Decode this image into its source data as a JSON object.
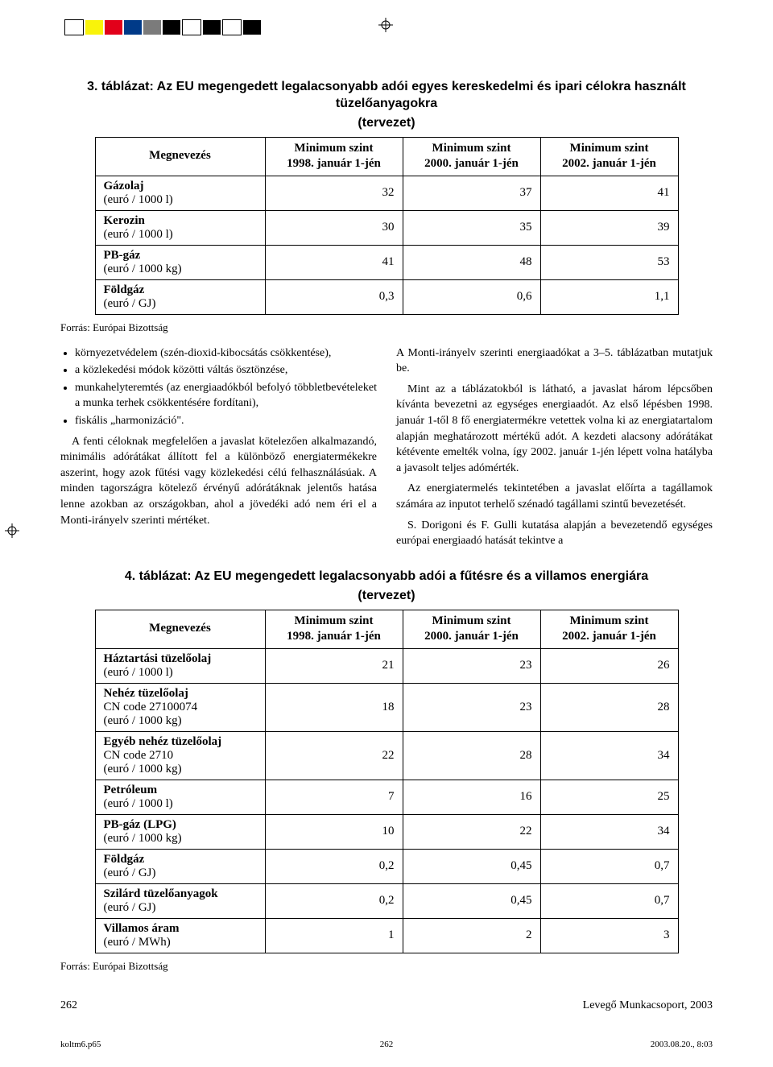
{
  "palette_swatches": [
    "#ffffff",
    "#f9f30a",
    "#e2001a",
    "#003a88",
    "#7b7b7b",
    "#000000",
    "#ffffff",
    "#000000",
    "#ffffff",
    "#000000"
  ],
  "table3": {
    "title": "3. táblázat: Az EU megengedett legalacsonyabb adói egyes kereskedelmi és ipari célokra használt tüzelőanyagokra",
    "subtitle": "(tervezet)",
    "columns": [
      "Megnevezés",
      "Minimum szint 1998. január 1-jén",
      "Minimum szint 2000. január 1-jén",
      "Minimum szint 2002. január 1-jén"
    ],
    "rows": [
      {
        "label_b": "Gázolaj",
        "label_s": "(euró / 1000 l)",
        "v1": "32",
        "v2": "37",
        "v3": "41"
      },
      {
        "label_b": "Kerozin",
        "label_s": "(euró / 1000 l)",
        "v1": "30",
        "v2": "35",
        "v3": "39"
      },
      {
        "label_b": "PB-gáz",
        "label_s": "(euró / 1000 kg)",
        "v1": "41",
        "v2": "48",
        "v3": "53"
      },
      {
        "label_b": "Földgáz",
        "label_s": "(euró / GJ)",
        "v1": "0,3",
        "v2": "0,6",
        "v3": "1,1"
      }
    ],
    "source": "Forrás: Európai Bizottság"
  },
  "body_left": {
    "bullets": [
      "környezetvédelem (szén-dioxid-kibocsátás csökkentése),",
      "a közlekedési módok közötti váltás ösztönzése,",
      "munkahelyteremtés (az energiaadókból befolyó többletbevételeket a munka terhek csökkentésére fordítani),",
      "fiskális „harmonizáció\"."
    ],
    "para": "A fenti céloknak megfelelően a javaslat kötelezően alkalmazandó, minimális adórátákat állított fel a különböző energiatermékekre aszerint, hogy azok fűtési vagy közlekedési célú felhasználásúak. A minden tagországra kötelező érvényű adórátáknak jelentős hatása lenne azokban az országokban, ahol a jövedéki adó nem éri el a Monti-irányelv szerinti mértéket."
  },
  "body_right": {
    "p1": "A Monti-irányelv szerinti energiaadókat a 3–5. táblázatban mutatjuk be.",
    "p2": "Mint az a táblázatokból is látható, a javaslat három lépcsőben kívánta bevezetni az egységes energiaadót. Az első lépésben 1998. január 1-től 8 fő energiatermékre vetettek volna ki az energiatartalom alapján meghatározott mértékű adót. A kezdeti alacsony adórátákat kétévente emelték volna, így 2002. január 1-jén lépett volna hatályba a javasolt teljes adómérték.",
    "p3": "Az energiatermelés tekintetében a javaslat előírta a tagállamok számára az inputot terhelő szénadó tagállami szintű bevezetését.",
    "p4": "S. Dorigoni és F. Gulli kutatása alapján a bevezetendő egységes európai energiaadó hatását tekintve a"
  },
  "table4": {
    "title": "4. táblázat: Az EU megengedett legalacsonyabb adói a fűtésre és a villamos energiára",
    "subtitle": "(tervezet)",
    "columns": [
      "Megnevezés",
      "Minimum szint 1998. január 1-jén",
      "Minimum szint 2000. január 1-jén",
      "Minimum szint 2002. január 1-jén"
    ],
    "rows": [
      {
        "label_b": "Háztartási tüzelőolaj",
        "label_s": "(euró / 1000 l)",
        "v1": "21",
        "v2": "23",
        "v3": "26"
      },
      {
        "label_b": "Nehéz tüzelőolaj",
        "label_m": "CN code 27100074",
        "label_s": "(euró / 1000 kg)",
        "v1": "18",
        "v2": "23",
        "v3": "28"
      },
      {
        "label_b": "Egyéb nehéz tüzelőolaj",
        "label_m": "CN code 2710",
        "label_s": "(euró / 1000 kg)",
        "v1": "22",
        "v2": "28",
        "v3": "34"
      },
      {
        "label_b": "Petróleum",
        "label_s": "(euró / 1000 l)",
        "v1": "7",
        "v2": "16",
        "v3": "25"
      },
      {
        "label_b": "PB-gáz (LPG)",
        "label_s": "(euró / 1000 kg)",
        "v1": "10",
        "v2": "22",
        "v3": "34"
      },
      {
        "label_b": "Földgáz",
        "label_s": "(euró / GJ)",
        "v1": "0,2",
        "v2": "0,45",
        "v3": "0,7"
      },
      {
        "label_b": "Szilárd tüzelőanyagok",
        "label_s": "(euró / GJ)",
        "v1": "0,2",
        "v2": "0,45",
        "v3": "0,7"
      },
      {
        "label_b": "Villamos áram",
        "label_s": "(euró / MWh)",
        "v1": "1",
        "v2": "2",
        "v3": "3"
      }
    ],
    "source": "Forrás: Európai Bizottság"
  },
  "footer": {
    "page_num": "262",
    "credit": "Levegő Munkacsoport, 2003",
    "file": "koltm6.p65",
    "meta_page": "262",
    "timestamp": "2003.08.20., 8:03"
  }
}
